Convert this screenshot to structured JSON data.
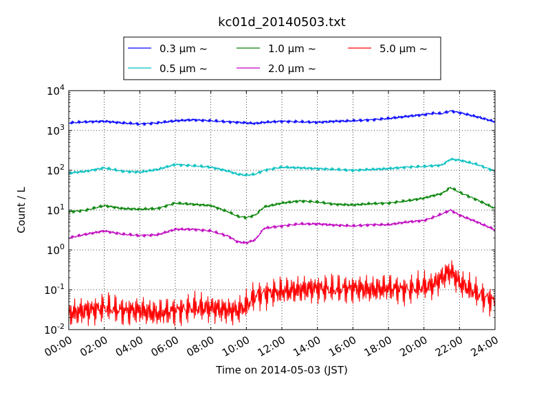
{
  "chart_data": {
    "type": "line",
    "title": "kc01d_20140503.txt",
    "xlabel": "Time on 2014-05-03 (JST)",
    "ylabel": "Count / L",
    "yscale": "log",
    "grid": true,
    "legend_position": "top-center",
    "xlim": [
      "00:00",
      "24:00"
    ],
    "ylim": [
      0.01,
      10000
    ],
    "x_ticks": [
      "00:00",
      "02:00",
      "04:00",
      "06:00",
      "08:00",
      "10:00",
      "12:00",
      "14:00",
      "16:00",
      "18:00",
      "20:00",
      "22:00",
      "24:00"
    ],
    "y_ticks": [
      {
        "base": "10",
        "exp": "-2"
      },
      {
        "base": "10",
        "exp": "-1"
      },
      {
        "base": "10",
        "exp": "0"
      },
      {
        "base": "10",
        "exp": "1"
      },
      {
        "base": "10",
        "exp": "2"
      },
      {
        "base": "10",
        "exp": "3"
      },
      {
        "base": "10",
        "exp": "4"
      }
    ],
    "x": [
      "00:00",
      "01:00",
      "02:00",
      "03:00",
      "04:00",
      "05:00",
      "06:00",
      "07:00",
      "08:00",
      "09:00",
      "09:30",
      "10:00",
      "10:30",
      "11:00",
      "12:00",
      "13:00",
      "14:00",
      "15:00",
      "16:00",
      "17:00",
      "18:00",
      "19:00",
      "20:00",
      "20:30",
      "21:00",
      "21:30",
      "22:00",
      "23:00",
      "24:00"
    ],
    "series": [
      {
        "name": "0.3 μm ~",
        "color": "#0000ff",
        "values": [
          1550,
          1650,
          1700,
          1550,
          1450,
          1550,
          1750,
          1850,
          1750,
          1650,
          1600,
          1550,
          1500,
          1600,
          1700,
          1650,
          1600,
          1700,
          1750,
          1850,
          2000,
          2250,
          2500,
          2700,
          2650,
          3100,
          2800,
          2200,
          1650
        ]
      },
      {
        "name": "0.5 μm ~",
        "color": "#00bfbf",
        "values": [
          85,
          95,
          115,
          95,
          90,
          105,
          140,
          130,
          120,
          95,
          80,
          75,
          80,
          100,
          120,
          115,
          110,
          105,
          100,
          105,
          110,
          120,
          125,
          130,
          135,
          190,
          180,
          140,
          95
        ]
      },
      {
        "name": "1.0 μm ~",
        "color": "#008000",
        "values": [
          9,
          10,
          13,
          11,
          10.5,
          11,
          15,
          14,
          13,
          9,
          7,
          6.5,
          7.5,
          12,
          15,
          17,
          16,
          14,
          13.5,
          14.5,
          15,
          17,
          20,
          23,
          26,
          37,
          28,
          18,
          11
        ]
      },
      {
        "name": "2.0 μm ~",
        "color": "#bf00bf",
        "values": [
          2,
          2.5,
          3,
          2.5,
          2.3,
          2.4,
          3.3,
          3.3,
          3,
          2.2,
          1.6,
          1.5,
          1.8,
          3.5,
          4,
          4.5,
          4.5,
          4.2,
          4,
          4.3,
          4.3,
          5,
          5.5,
          6.5,
          8,
          10,
          7.5,
          5,
          3.2
        ]
      },
      {
        "name": "5.0 μm ~",
        "color": "#ff0000",
        "values": [
          0.025,
          0.03,
          0.035,
          0.03,
          0.03,
          0.025,
          0.03,
          0.035,
          0.035,
          0.03,
          0.03,
          0.04,
          0.07,
          0.08,
          0.09,
          0.1,
          0.11,
          0.1,
          0.11,
          0.1,
          0.11,
          0.1,
          0.12,
          0.13,
          0.2,
          0.3,
          0.15,
          0.08,
          0.05
        ]
      }
    ]
  }
}
